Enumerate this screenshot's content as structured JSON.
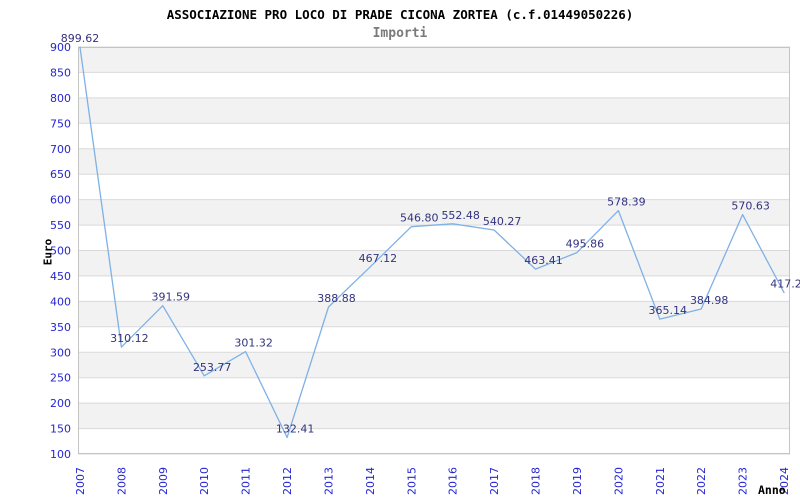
{
  "title": "ASSOCIAZIONE PRO LOCO DI PRADE CICONA ZORTEA (c.f.01449050226)",
  "subtitle": "Importi",
  "axes": {
    "y_title": "Euro",
    "x_title": "Anno",
    "y_ticks": [
      100,
      150,
      200,
      250,
      300,
      350,
      400,
      450,
      500,
      550,
      600,
      650,
      700,
      750,
      800,
      850,
      900
    ]
  },
  "colors": {
    "title": "#000000",
    "subtitle": "#7a7a7a",
    "line": "#7fb1e5",
    "tick_label": "#2525d2",
    "value_label": "#333380",
    "band_gray": "#f2f2f2",
    "band_white": "#ffffff",
    "gridline": "#d9d9d9",
    "plot_border": "#c4c4c4",
    "background": "#ffffff"
  },
  "chart_data": {
    "type": "line",
    "title": "ASSOCIAZIONE PRO LOCO DI PRADE CICONA ZORTEA (c.f.01449050226)",
    "subtitle": "Importi",
    "xlabel": "Anno",
    "ylabel": "Euro",
    "categories": [
      "2007",
      "2008",
      "2009",
      "2010",
      "2011",
      "2012",
      "2013",
      "2014",
      "2015",
      "2016",
      "2017",
      "2018",
      "2019",
      "2020",
      "2021",
      "2022",
      "2023",
      "2024"
    ],
    "values": [
      899.62,
      310.12,
      391.59,
      253.77,
      301.32,
      132.41,
      388.88,
      467.12,
      546.8,
      552.48,
      540.27,
      463.41,
      495.86,
      578.39,
      365.14,
      384.98,
      570.63,
      417.2
    ],
    "value_labels": [
      "899.62",
      "310.12",
      "391.59",
      "253.77",
      "301.32",
      "132.41",
      "388.88",
      "467.12",
      "546.80",
      "552.48",
      "540.27",
      "463.41",
      "495.86",
      "578.39",
      "365.14",
      "384.98",
      "570.63",
      "417.2"
    ],
    "ylim": [
      100,
      900
    ],
    "ytick_step": 50,
    "grid": true,
    "banded_background": true,
    "legend_position": "none",
    "markers": "none"
  }
}
